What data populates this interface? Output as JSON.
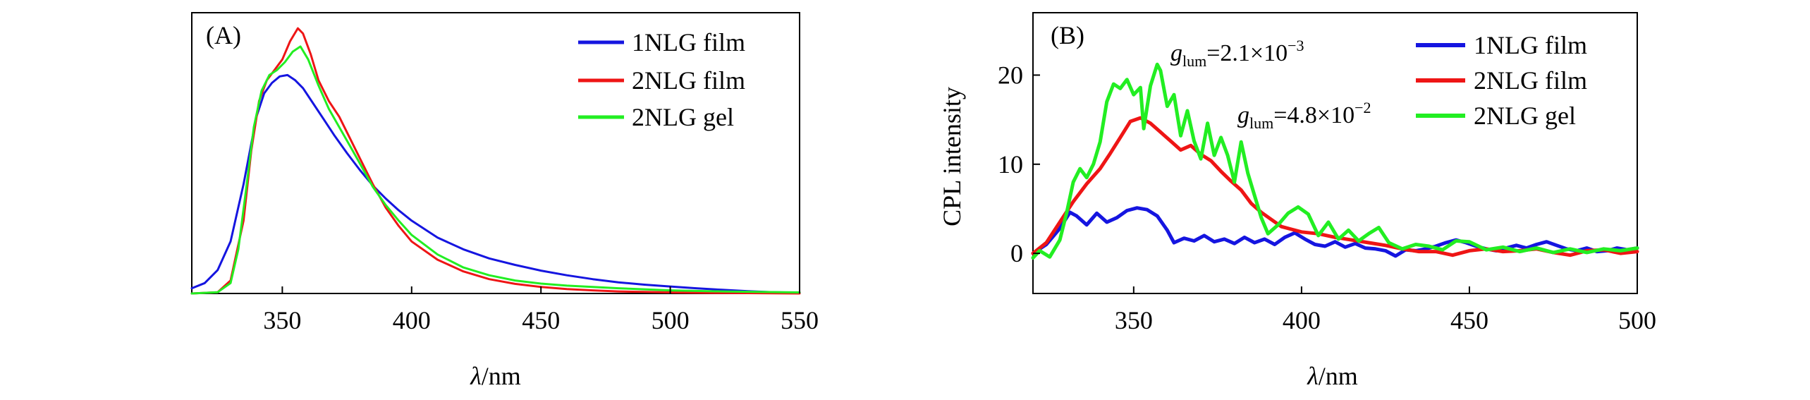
{
  "chart_data": [
    {
      "panel": "(A)",
      "type": "line",
      "title": "",
      "xlabel_italic": "λ",
      "xlabel_unit": "/nm",
      "ylabel": "",
      "xlim": [
        315,
        550
      ],
      "ylim": [
        0,
        1.08
      ],
      "x_ticks": [
        350,
        400,
        450,
        500,
        550
      ],
      "y_ticks": [],
      "legend_position": "top-right",
      "grid": false,
      "series": [
        {
          "name": "1NLG film",
          "color": "#1515e0",
          "x": [
            315,
            320,
            325,
            330,
            335,
            340,
            343,
            346,
            349,
            352,
            355,
            358,
            362,
            366,
            370,
            375,
            380,
            385,
            390,
            395,
            400,
            410,
            420,
            430,
            440,
            450,
            460,
            470,
            480,
            490,
            500,
            510,
            520,
            530,
            540,
            550
          ],
          "y": [
            0.02,
            0.04,
            0.09,
            0.2,
            0.42,
            0.68,
            0.77,
            0.81,
            0.835,
            0.84,
            0.82,
            0.79,
            0.73,
            0.67,
            0.61,
            0.54,
            0.475,
            0.415,
            0.365,
            0.32,
            0.28,
            0.215,
            0.17,
            0.135,
            0.11,
            0.088,
            0.07,
            0.055,
            0.043,
            0.034,
            0.027,
            0.02,
            0.014,
            0.009,
            0.005,
            0.003
          ]
        },
        {
          "name": "2NLG film",
          "color": "#ee1515",
          "x": [
            315,
            325,
            330,
            335,
            338,
            341,
            344,
            347,
            350,
            353,
            356,
            358,
            361,
            364,
            368,
            372,
            376,
            380,
            385,
            390,
            395,
            400,
            410,
            420,
            430,
            440,
            450,
            460,
            470,
            480,
            490,
            500,
            520,
            550
          ],
          "y": [
            0.0,
            0.005,
            0.05,
            0.28,
            0.55,
            0.74,
            0.82,
            0.86,
            0.9,
            0.97,
            1.02,
            1.0,
            0.92,
            0.82,
            0.74,
            0.68,
            0.6,
            0.52,
            0.42,
            0.33,
            0.26,
            0.2,
            0.13,
            0.085,
            0.055,
            0.037,
            0.025,
            0.017,
            0.012,
            0.008,
            0.006,
            0.004,
            0.002,
            0.0
          ]
        },
        {
          "name": "2NLG gel",
          "color": "#22ee22",
          "x": [
            315,
            325,
            330,
            333,
            336,
            339,
            342,
            345,
            348,
            351,
            354,
            357,
            360,
            364,
            368,
            372,
            376,
            380,
            385,
            390,
            395,
            400,
            410,
            420,
            430,
            440,
            450,
            460,
            470,
            480,
            490,
            500,
            520,
            550
          ],
          "y": [
            0.0,
            0.005,
            0.04,
            0.17,
            0.4,
            0.64,
            0.78,
            0.84,
            0.86,
            0.89,
            0.93,
            0.95,
            0.9,
            0.8,
            0.71,
            0.64,
            0.57,
            0.5,
            0.41,
            0.34,
            0.28,
            0.225,
            0.15,
            0.1,
            0.07,
            0.05,
            0.038,
            0.03,
            0.025,
            0.02,
            0.016,
            0.012,
            0.008,
            0.004
          ]
        }
      ]
    },
    {
      "panel": "(B)",
      "type": "line",
      "title": "",
      "xlabel_italic": "λ",
      "xlabel_unit": "/nm",
      "ylabel": "CPL intensity",
      "xlim": [
        320,
        500
      ],
      "ylim": [
        -4.5,
        27
      ],
      "x_ticks": [
        350,
        400,
        450,
        500
      ],
      "y_ticks": [
        0,
        10,
        20
      ],
      "legend_position": "top-right",
      "grid": false,
      "annotations": [
        {
          "sub": "lum",
          "value": "=2.1×10",
          "exp": "−3"
        },
        {
          "sub": "lum",
          "value": "=4.8×10",
          "exp": "−2"
        }
      ],
      "series": [
        {
          "name": "1NLG film",
          "color": "#1515e0",
          "x": [
            320,
            324,
            328,
            331,
            333,
            336,
            339,
            342,
            345,
            348,
            351,
            354,
            357,
            360,
            362,
            365,
            368,
            371,
            374,
            377,
            380,
            383,
            386,
            389,
            392,
            395,
            398,
            401,
            404,
            407,
            410,
            413,
            416,
            419,
            422,
            425,
            428,
            431,
            434,
            437,
            440,
            443,
            446,
            449,
            452,
            455,
            458,
            461,
            464,
            467,
            470,
            473,
            476,
            479,
            482,
            485,
            488,
            491,
            494,
            497,
            500
          ],
          "y": [
            0.0,
            1.0,
            2.8,
            4.6,
            4.2,
            3.2,
            4.5,
            3.5,
            4.0,
            4.8,
            5.1,
            4.9,
            4.2,
            2.6,
            1.2,
            1.7,
            1.4,
            2.0,
            1.3,
            1.6,
            1.1,
            1.8,
            1.2,
            1.6,
            1.0,
            1.8,
            2.3,
            1.6,
            1.0,
            0.8,
            1.3,
            0.7,
            1.1,
            0.6,
            0.5,
            0.3,
            -0.3,
            0.4,
            0.3,
            0.5,
            0.8,
            1.2,
            1.5,
            1.2,
            0.8,
            0.5,
            0.3,
            0.6,
            0.9,
            0.6,
            1.0,
            1.3,
            0.9,
            0.5,
            0.3,
            0.6,
            0.2,
            0.3,
            0.6,
            0.4,
            0.6
          ]
        },
        {
          "name": "2NLG film",
          "color": "#ee1515",
          "x": [
            320,
            324,
            328,
            332,
            336,
            340,
            343,
            346,
            349,
            352,
            355,
            358,
            361,
            364,
            367,
            370,
            373,
            376,
            379,
            382,
            385,
            388,
            391,
            394,
            397,
            400,
            405,
            410,
            415,
            420,
            425,
            430,
            435,
            440,
            445,
            450,
            455,
            460,
            465,
            470,
            475,
            480,
            485,
            490,
            495,
            500
          ],
          "y": [
            0.0,
            1.2,
            3.5,
            5.8,
            7.8,
            9.5,
            11.2,
            13.0,
            14.8,
            15.2,
            14.6,
            13.6,
            12.6,
            11.6,
            12.1,
            11.1,
            10.4,
            9.2,
            8.1,
            7.1,
            5.6,
            4.6,
            3.8,
            3.0,
            2.7,
            2.4,
            2.2,
            1.8,
            1.5,
            1.2,
            0.9,
            0.5,
            0.2,
            0.2,
            -0.2,
            0.3,
            0.5,
            0.2,
            0.3,
            0.5,
            0.1,
            -0.2,
            0.3,
            0.4,
            0.0,
            0.2
          ]
        },
        {
          "name": "2NLG gel",
          "color": "#22ee22",
          "x": [
            320,
            322,
            325,
            328,
            330,
            332,
            334,
            336,
            338,
            340,
            342,
            344,
            346,
            348,
            350,
            352,
            353,
            355,
            357,
            358,
            360,
            362,
            364,
            366,
            368,
            370,
            372,
            374,
            376,
            378,
            380,
            382,
            384,
            386,
            388,
            390,
            393,
            396,
            399,
            402,
            405,
            408,
            411,
            414,
            417,
            420,
            423,
            426,
            430,
            434,
            438,
            442,
            446,
            450,
            455,
            460,
            465,
            470,
            475,
            480,
            485,
            490,
            495,
            500
          ],
          "y": [
            -0.5,
            0.3,
            -0.4,
            1.5,
            4.5,
            8.0,
            9.5,
            8.5,
            10.0,
            12.5,
            17.0,
            19.0,
            18.5,
            19.5,
            17.8,
            18.6,
            14.0,
            18.8,
            21.2,
            20.5,
            16.5,
            17.8,
            13.2,
            16.0,
            12.6,
            10.6,
            14.6,
            11.0,
            13.0,
            11.0,
            8.0,
            12.5,
            9.0,
            6.5,
            4.0,
            2.2,
            3.2,
            4.5,
            5.2,
            4.4,
            2.0,
            3.5,
            1.6,
            2.6,
            1.4,
            2.2,
            2.9,
            1.2,
            0.5,
            1.0,
            0.8,
            0.4,
            1.4,
            1.3,
            0.4,
            0.7,
            0.2,
            0.6,
            0.1,
            0.5,
            0.1,
            0.5,
            0.3,
            0.6
          ]
        }
      ]
    }
  ]
}
